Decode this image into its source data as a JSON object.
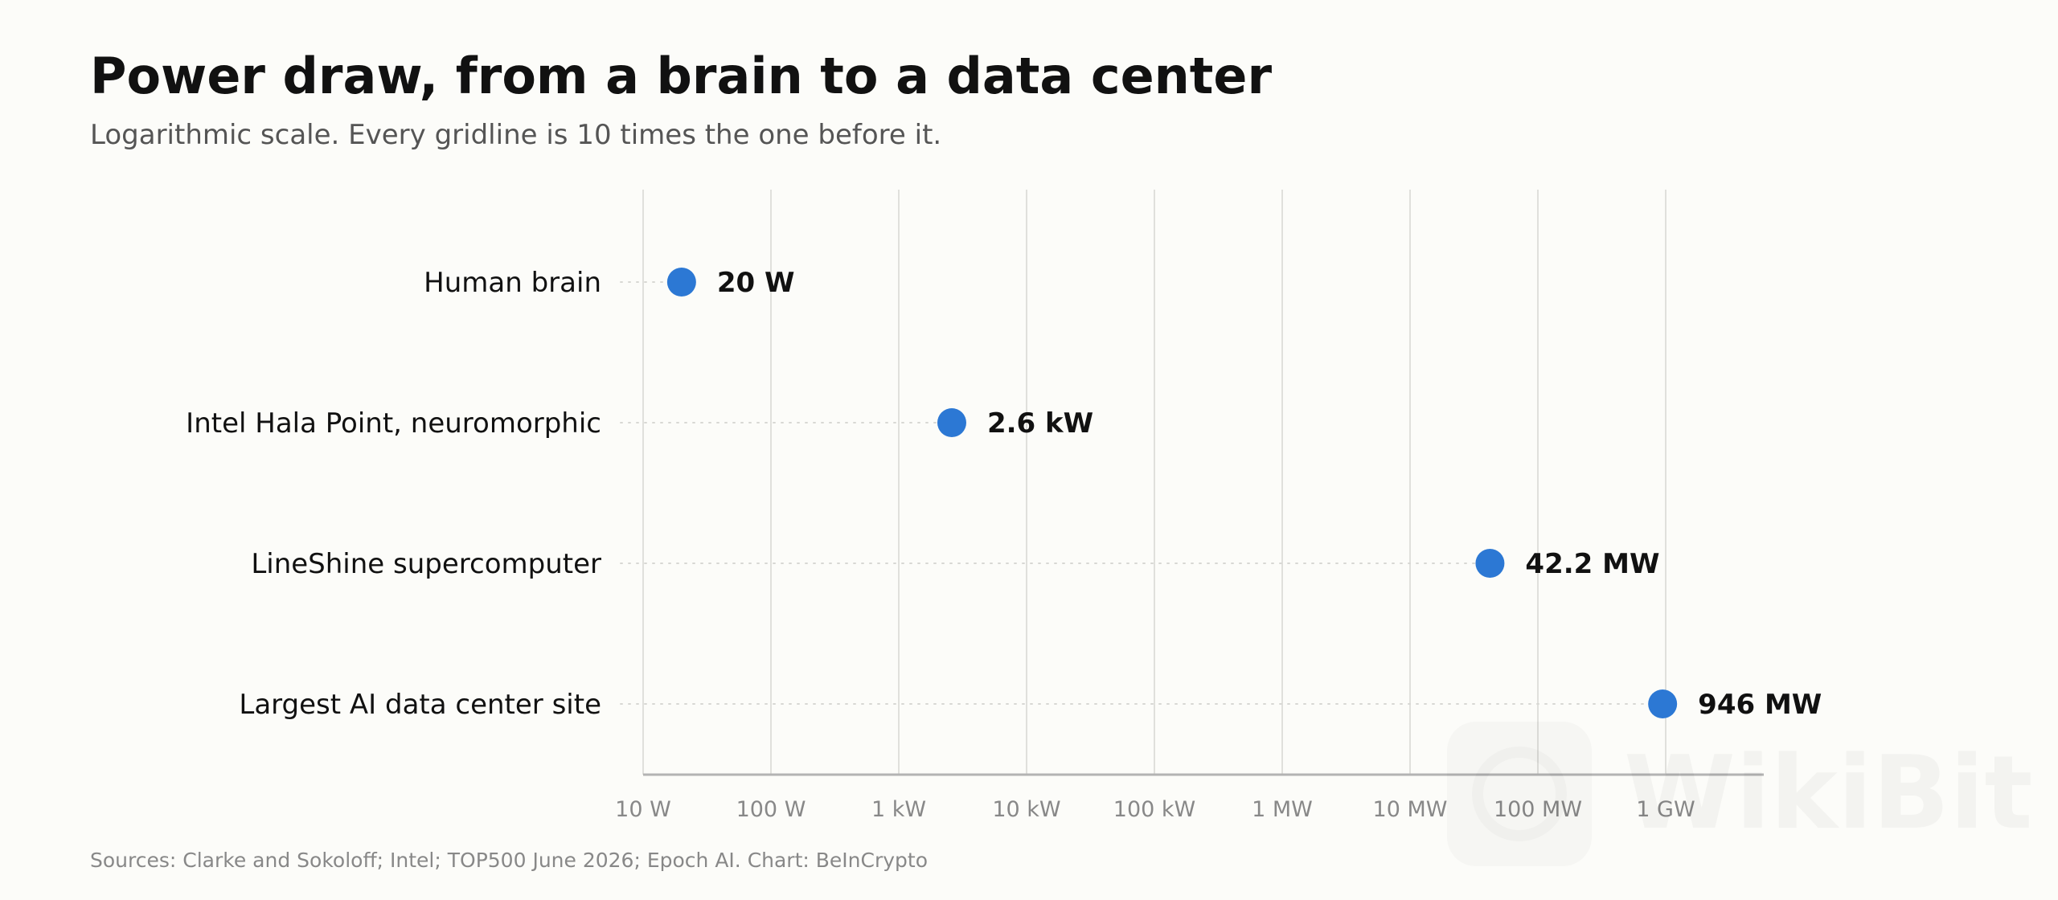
{
  "title": "Power draw, from a brain to a data center",
  "subtitle": "Logarithmic scale. Every gridline is 10 times the one before it.",
  "source": "Sources: Clarke and Sokoloff; Intel; TOP500 June 2026; Epoch AI. Chart: BeInCrypto",
  "watermark_text": "WikiBit",
  "colors": {
    "point": "#2c78d4",
    "grid": "#e0e0dc",
    "axis": "#b3b3b3",
    "tick_text": "#888888",
    "label_text": "#111111"
  },
  "chart_data": {
    "type": "scatter",
    "orientation": "horizontal",
    "title": "Power draw, from a brain to a data center",
    "subtitle": "Logarithmic scale. Every gridline is 10 times the one before it.",
    "x_scale": "log",
    "x_unit": "W",
    "xlim": [
      10,
      1000000000
    ],
    "grid": true,
    "x_ticks": [
      {
        "value": 10,
        "label": "10 W"
      },
      {
        "value": 100,
        "label": "100 W"
      },
      {
        "value": 1000,
        "label": "1 kW"
      },
      {
        "value": 10000,
        "label": "10 kW"
      },
      {
        "value": 100000,
        "label": "100 kW"
      },
      {
        "value": 1000000,
        "label": "1 MW"
      },
      {
        "value": 10000000,
        "label": "10 MW"
      },
      {
        "value": 100000000,
        "label": "100 MW"
      },
      {
        "value": 1000000000,
        "label": "1 GW"
      }
    ],
    "points": [
      {
        "category": "Human brain",
        "value": 20,
        "label": "20 W"
      },
      {
        "category": "Intel Hala Point, neuromorphic",
        "value": 2600,
        "label": "2.6 kW"
      },
      {
        "category": "LineShine supercomputer",
        "value": 42200000,
        "label": "42.2 MW"
      },
      {
        "category": "Largest AI data center site",
        "value": 946000000,
        "label": "946 MW"
      }
    ]
  }
}
